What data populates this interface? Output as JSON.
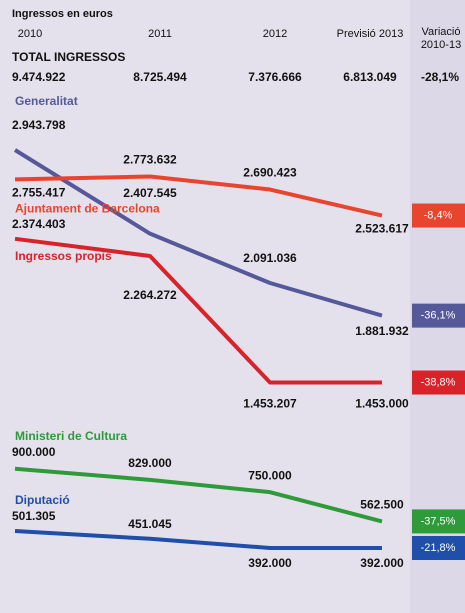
{
  "title": "Ingressos en euros",
  "columns": [
    "2010",
    "2011",
    "2012",
    "Previsió 2013"
  ],
  "change_header": "Variació 2010-13",
  "total": {
    "label": "TOTAL INGRESSOS",
    "values": [
      9474922,
      8725494,
      7376666,
      6813049
    ],
    "value_labels": [
      "9.474.922",
      "8.725.494",
      "7.376.666",
      "6.813.049"
    ],
    "change": -28.1,
    "change_label": "-28,1%"
  },
  "chart_data": {
    "type": "line",
    "series": [
      {
        "name": "Generalitat",
        "color": "#55599a",
        "values": [
          2943798,
          2407545,
          2091036,
          1881932
        ],
        "value_labels": [
          "2.943.798",
          "2.407.545",
          "2.091.036",
          "1.881.932"
        ],
        "change": -36.1,
        "change_label": "-36,1%"
      },
      {
        "name": "Ajuntament de Barcelona",
        "color": "#e8452e",
        "values": [
          2755417,
          2773632,
          2690423,
          2523617
        ],
        "value_labels": [
          "2.755.417",
          "2.773.632",
          "2.690.423",
          "2.523.617"
        ],
        "change": -8.4,
        "change_label": "-8,4%"
      },
      {
        "name": "Ingressos propis",
        "color": "#d8232a",
        "values": [
          2374403,
          2264272,
          1453207,
          1453000
        ],
        "value_labels": [
          "2.374.403",
          "2.264.272",
          "1.453.207",
          "1.453.000"
        ],
        "change": -38.8,
        "change_label": "-38,8%"
      },
      {
        "name": "Ministeri de Cultura",
        "color": "#2f9a3a",
        "values": [
          900000,
          829000,
          750000,
          562500
        ],
        "value_labels": [
          "900.000",
          "829.000",
          "750.000",
          "562.500"
        ],
        "change": -37.5,
        "change_label": "-37,5%"
      },
      {
        "name": "Diputació",
        "color": "#1f4fa8",
        "values": [
          501305,
          451045,
          392000,
          392000
        ],
        "value_labels": [
          "501.305",
          "451.045",
          "392.000",
          "392.000"
        ],
        "change": -21.8,
        "change_label": "-21,8%"
      }
    ]
  }
}
